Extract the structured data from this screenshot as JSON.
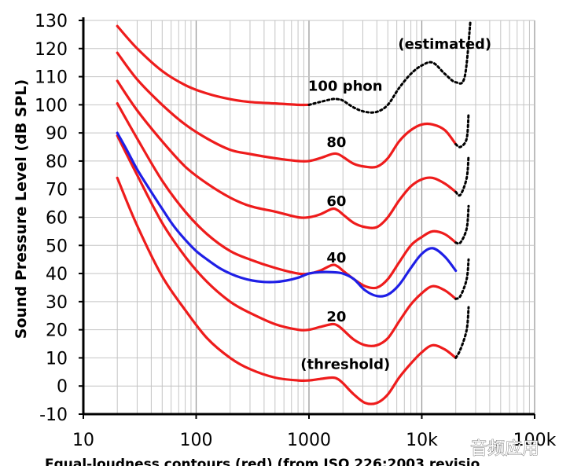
{
  "chart_data": {
    "type": "line",
    "xscale": "log",
    "xlim": [
      10,
      100000
    ],
    "ylim": [
      -10,
      130
    ],
    "grid": true,
    "ylabel": "Sound Pressure Level (dB SPL)",
    "xlabel": "Equal-loudness contours (red) (from ISO 226:2003 revisio",
    "x_ticks": [
      {
        "value": 10,
        "label": "10"
      },
      {
        "value": 100,
        "label": "100"
      },
      {
        "value": 1000,
        "label": "1000"
      },
      {
        "value": 10000,
        "label": "10k"
      },
      {
        "value": 100000,
        "label": "100k"
      }
    ],
    "y_ticks": [
      130,
      120,
      110,
      100,
      90,
      80,
      70,
      60,
      50,
      40,
      30,
      20,
      10,
      0,
      -10
    ],
    "series": [
      {
        "style": "red",
        "points": [
          [
            20,
            74
          ],
          [
            30,
            57
          ],
          [
            50,
            39
          ],
          [
            80,
            27
          ],
          [
            125,
            17
          ],
          [
            200,
            10
          ],
          [
            300,
            6
          ],
          [
            500,
            3
          ],
          [
            800,
            2
          ],
          [
            1000,
            2
          ],
          [
            1250,
            2.5
          ],
          [
            1600,
            3
          ],
          [
            1800,
            2.5
          ],
          [
            2000,
            1
          ],
          [
            2500,
            -3
          ],
          [
            3150,
            -6
          ],
          [
            4000,
            -6
          ],
          [
            5000,
            -3
          ],
          [
            6300,
            3
          ],
          [
            8000,
            8
          ],
          [
            10000,
            12
          ],
          [
            12500,
            14.5
          ],
          [
            16000,
            13
          ],
          [
            20000,
            10
          ]
        ]
      },
      {
        "style": "red",
        "points": [
          [
            20,
            89
          ],
          [
            30,
            75
          ],
          [
            50,
            58
          ],
          [
            80,
            46
          ],
          [
            125,
            37
          ],
          [
            200,
            30
          ],
          [
            300,
            26
          ],
          [
            500,
            22
          ],
          [
            800,
            20
          ],
          [
            1000,
            20
          ],
          [
            1250,
            21
          ],
          [
            1600,
            22
          ],
          [
            1800,
            21.5
          ],
          [
            2000,
            20
          ],
          [
            2500,
            16.5
          ],
          [
            3150,
            14.5
          ],
          [
            4000,
            14.5
          ],
          [
            5000,
            17
          ],
          [
            6300,
            23
          ],
          [
            8000,
            29
          ],
          [
            10000,
            33
          ],
          [
            12500,
            35.5
          ],
          [
            16000,
            34
          ],
          [
            20000,
            31
          ]
        ]
      },
      {
        "style": "red",
        "points": [
          [
            20,
            100.5
          ],
          [
            30,
            88
          ],
          [
            50,
            73
          ],
          [
            80,
            62
          ],
          [
            125,
            54
          ],
          [
            200,
            48
          ],
          [
            300,
            45
          ],
          [
            500,
            42
          ],
          [
            800,
            40
          ],
          [
            1000,
            40
          ],
          [
            1250,
            41
          ],
          [
            1600,
            43
          ],
          [
            1800,
            42.5
          ],
          [
            2000,
            41
          ],
          [
            2500,
            38
          ],
          [
            3150,
            35.5
          ],
          [
            4000,
            35
          ],
          [
            5000,
            38
          ],
          [
            6300,
            44
          ],
          [
            8000,
            50
          ],
          [
            10000,
            53
          ],
          [
            12500,
            55
          ],
          [
            16000,
            54
          ],
          [
            20000,
            51
          ]
        ]
      },
      {
        "style": "red",
        "points": [
          [
            20,
            108.5
          ],
          [
            30,
            98
          ],
          [
            50,
            87
          ],
          [
            80,
            78
          ],
          [
            125,
            72
          ],
          [
            200,
            67
          ],
          [
            300,
            64
          ],
          [
            500,
            62
          ],
          [
            800,
            60
          ],
          [
            1000,
            60
          ],
          [
            1250,
            61
          ],
          [
            1600,
            63
          ],
          [
            1800,
            62.5
          ],
          [
            2000,
            61
          ],
          [
            2500,
            58
          ],
          [
            3150,
            56.5
          ],
          [
            4000,
            56.5
          ],
          [
            5000,
            60
          ],
          [
            6300,
            66
          ],
          [
            8000,
            71
          ],
          [
            10000,
            73.5
          ],
          [
            12500,
            74
          ],
          [
            16000,
            72
          ],
          [
            20000,
            69
          ]
        ]
      },
      {
        "style": "red",
        "points": [
          [
            20,
            118.5
          ],
          [
            30,
            109
          ],
          [
            50,
            100
          ],
          [
            80,
            93
          ],
          [
            125,
            88
          ],
          [
            200,
            84
          ],
          [
            300,
            82.5
          ],
          [
            500,
            81
          ],
          [
            800,
            80
          ],
          [
            1000,
            80
          ],
          [
            1250,
            81
          ],
          [
            1600,
            82.5
          ],
          [
            1800,
            82.5
          ],
          [
            2000,
            81.5
          ],
          [
            2500,
            79
          ],
          [
            3150,
            78
          ],
          [
            4000,
            78
          ],
          [
            5000,
            81
          ],
          [
            6300,
            87
          ],
          [
            8000,
            91
          ],
          [
            10000,
            93
          ],
          [
            12500,
            93
          ],
          [
            16000,
            91
          ],
          [
            20000,
            86
          ]
        ]
      },
      {
        "style": "red",
        "points": [
          [
            20,
            128
          ],
          [
            30,
            120
          ],
          [
            50,
            112
          ],
          [
            80,
            107
          ],
          [
            125,
            104
          ],
          [
            200,
            102
          ],
          [
            300,
            101
          ],
          [
            500,
            100.5
          ],
          [
            800,
            100
          ],
          [
            1000,
            100
          ]
        ]
      },
      {
        "style": "dotted",
        "points": [
          [
            1000,
            100
          ],
          [
            1250,
            101
          ],
          [
            1600,
            102
          ],
          [
            1800,
            102
          ],
          [
            2000,
            101.5
          ],
          [
            2500,
            99
          ],
          [
            3150,
            97.5
          ],
          [
            4000,
            97.5
          ],
          [
            5000,
            100
          ],
          [
            6300,
            106
          ],
          [
            8000,
            111
          ],
          [
            10000,
            114
          ],
          [
            12500,
            115
          ],
          [
            16000,
            111
          ],
          [
            20000,
            108
          ],
          [
            24000,
            110
          ],
          [
            27000,
            130
          ]
        ]
      },
      {
        "style": "dotted",
        "points": [
          [
            20000,
            86
          ],
          [
            22000,
            85
          ],
          [
            25000,
            88
          ],
          [
            26000,
            97
          ]
        ]
      },
      {
        "style": "dotted",
        "points": [
          [
            20000,
            69
          ],
          [
            22000,
            68
          ],
          [
            25000,
            74
          ],
          [
            26000,
            82
          ]
        ]
      },
      {
        "style": "dotted",
        "points": [
          [
            20000,
            51
          ],
          [
            22000,
            51
          ],
          [
            25000,
            56
          ],
          [
            26000,
            64
          ]
        ]
      },
      {
        "style": "dotted",
        "points": [
          [
            20000,
            31
          ],
          [
            22000,
            32
          ],
          [
            25000,
            38
          ],
          [
            26000,
            45
          ]
        ]
      },
      {
        "style": "dotted",
        "points": [
          [
            20000,
            10
          ],
          [
            22000,
            13
          ],
          [
            25000,
            20
          ],
          [
            26000,
            28
          ]
        ]
      },
      {
        "style": "blue",
        "points": [
          [
            20,
            90
          ],
          [
            25,
            83
          ],
          [
            30,
            77
          ],
          [
            40,
            69
          ],
          [
            50,
            63
          ],
          [
            63,
            57
          ],
          [
            80,
            52
          ],
          [
            100,
            48
          ],
          [
            125,
            45
          ],
          [
            160,
            42
          ],
          [
            200,
            40
          ],
          [
            250,
            38.5
          ],
          [
            315,
            37.5
          ],
          [
            400,
            37
          ],
          [
            500,
            37
          ],
          [
            630,
            37.5
          ],
          [
            800,
            38.5
          ],
          [
            1000,
            40
          ],
          [
            1250,
            40.5
          ],
          [
            1600,
            40.5
          ],
          [
            2000,
            40
          ],
          [
            2500,
            38
          ],
          [
            3150,
            34
          ],
          [
            4000,
            32
          ],
          [
            5000,
            32.5
          ],
          [
            6300,
            36
          ],
          [
            8000,
            42
          ],
          [
            10000,
            47
          ],
          [
            12500,
            49
          ],
          [
            16000,
            46
          ],
          [
            20000,
            41
          ]
        ]
      }
    ],
    "annotations": [
      {
        "text": "(estimated)",
        "x": 16000,
        "y": 120
      },
      {
        "text": "100 phon",
        "x": 2100,
        "y": 105
      },
      {
        "text": "80",
        "x": 1750,
        "y": 85
      },
      {
        "text": "60",
        "x": 1750,
        "y": 64
      },
      {
        "text": "40",
        "x": 1750,
        "y": 44
      },
      {
        "text": "20",
        "x": 1750,
        "y": 23
      },
      {
        "text": "(threshold)",
        "x": 2100,
        "y": 6
      }
    ]
  },
  "watermark": "音频应用"
}
